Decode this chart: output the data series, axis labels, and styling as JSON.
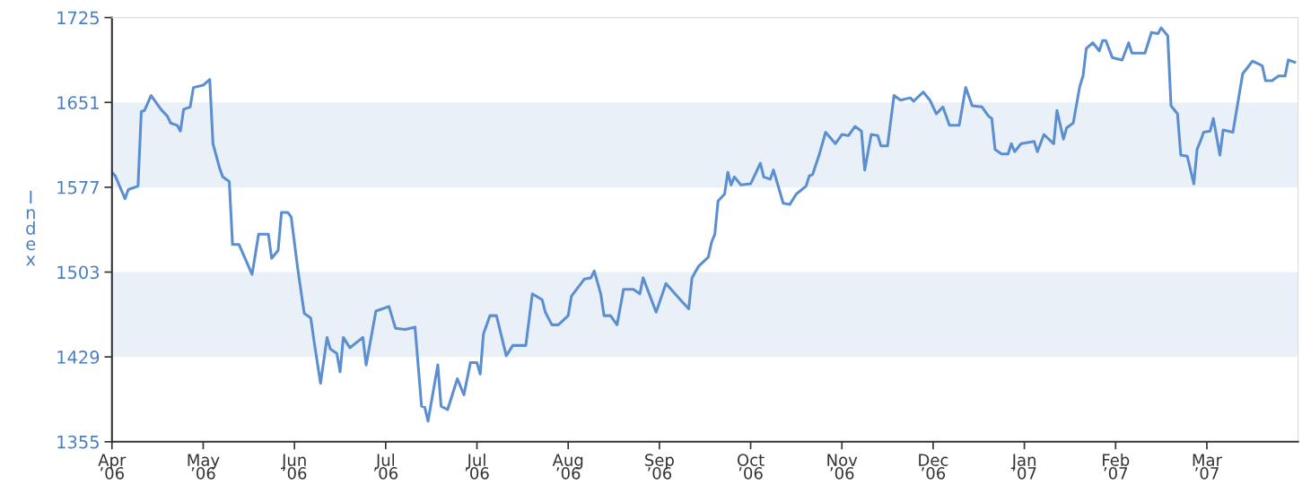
{
  "chart_data": {
    "type": "line",
    "ylabel": "Index",
    "xlim": [
      "2006-04-08",
      "2007-04-07"
    ],
    "ylim": [
      1355,
      1725
    ],
    "xticks": [
      {
        "value": "2006-04-08",
        "label": "Apr\n’06"
      },
      {
        "value": "2006-05-06",
        "label": "May\n’06"
      },
      {
        "value": "2006-06-03",
        "label": "Jun\n’06"
      },
      {
        "value": "2006-07-01",
        "label": "Jul\n’06"
      },
      {
        "value": "2006-07-29",
        "label": "Jul\n’06"
      },
      {
        "value": "2006-08-26",
        "label": "Aug\n’06"
      },
      {
        "value": "2006-09-23",
        "label": "Sep\n’06"
      },
      {
        "value": "2006-10-21",
        "label": "Oct\n’06"
      },
      {
        "value": "2006-11-18",
        "label": "Nov\n’06"
      },
      {
        "value": "2006-12-16",
        "label": "Dec\n’06"
      },
      {
        "value": "2007-01-13",
        "label": "Jan\n’07"
      },
      {
        "value": "2007-02-10",
        "label": "Feb\n’07"
      },
      {
        "value": "2007-03-10",
        "label": "Mar\n’07"
      }
    ],
    "yticks": [
      1355,
      1429,
      1503,
      1577,
      1651,
      1725
    ],
    "grid": false,
    "legend": false,
    "marker": "none",
    "line_style": "solid",
    "bands": [
      {
        "axis": "y",
        "from": 1429,
        "to": 1503,
        "color": "#eaf0f8"
      },
      {
        "axis": "y",
        "from": 1577,
        "to": 1651,
        "color": "#eaf0f8"
      }
    ],
    "series": [
      {
        "color": "#5b8fd0",
        "x": [
          "2006-04-08",
          "2006-04-09",
          "2006-04-12",
          "2006-04-13",
          "2006-04-16",
          "2006-04-17",
          "2006-04-18",
          "2006-04-20",
          "2006-04-21",
          "2006-04-23",
          "2006-04-25",
          "2006-04-26",
          "2006-04-28",
          "2006-04-29",
          "2006-04-30",
          "2006-05-02",
          "2006-05-03",
          "2006-05-06",
          "2006-05-08",
          "2006-05-09",
          "2006-05-11",
          "2006-05-12",
          "2006-05-14",
          "2006-05-15",
          "2006-05-17",
          "2006-05-21",
          "2006-05-23",
          "2006-05-26",
          "2006-05-27",
          "2006-05-29",
          "2006-05-30",
          "2006-06-01",
          "2006-06-02",
          "2006-06-04",
          "2006-06-06",
          "2006-06-08",
          "2006-06-09",
          "2006-06-11",
          "2006-06-13",
          "2006-06-14",
          "2006-06-16",
          "2006-06-17",
          "2006-06-18",
          "2006-06-20",
          "2006-06-24",
          "2006-06-25",
          "2006-06-28",
          "2006-06-30",
          "2006-07-02",
          "2006-07-04",
          "2006-07-07",
          "2006-07-10",
          "2006-07-12",
          "2006-07-13",
          "2006-07-14",
          "2006-07-17",
          "2006-07-18",
          "2006-07-20",
          "2006-07-23",
          "2006-07-25",
          "2006-07-27",
          "2006-07-29",
          "2006-07-30",
          "2006-07-31",
          "2006-08-02",
          "2006-08-04",
          "2006-08-07",
          "2006-08-09",
          "2006-08-13",
          "2006-08-15",
          "2006-08-18",
          "2006-08-19",
          "2006-08-21",
          "2006-08-23",
          "2006-08-26",
          "2006-08-27",
          "2006-08-31",
          "2006-09-02",
          "2006-09-03",
          "2006-09-05",
          "2006-09-06",
          "2006-09-08",
          "2006-09-10",
          "2006-09-12",
          "2006-09-15",
          "2006-09-17",
          "2006-09-18",
          "2006-09-22",
          "2006-09-25",
          "2006-09-30",
          "2006-10-02",
          "2006-10-03",
          "2006-10-05",
          "2006-10-08",
          "2006-10-09",
          "2006-10-10",
          "2006-10-11",
          "2006-10-13",
          "2006-10-14",
          "2006-10-15",
          "2006-10-16",
          "2006-10-18",
          "2006-10-21",
          "2006-10-24",
          "2006-10-25",
          "2006-10-27",
          "2006-10-28",
          "2006-10-31",
          "2006-11-02",
          "2006-11-04",
          "2006-11-07",
          "2006-11-08",
          "2006-11-09",
          "2006-11-11",
          "2006-11-13",
          "2006-11-16",
          "2006-11-18",
          "2006-11-20",
          "2006-11-22",
          "2006-11-24",
          "2006-11-25",
          "2006-11-27",
          "2006-11-29",
          "2006-11-30",
          "2006-12-02",
          "2006-12-04",
          "2006-12-06",
          "2006-12-09",
          "2006-12-10",
          "2006-12-13",
          "2006-12-15",
          "2006-12-17",
          "2006-12-19",
          "2006-12-21",
          "2006-12-24",
          "2006-12-26",
          "2006-12-28",
          "2006-12-31",
          "2007-01-02",
          "2007-01-03",
          "2007-01-04",
          "2007-01-06",
          "2007-01-08",
          "2007-01-09",
          "2007-01-10",
          "2007-01-12",
          "2007-01-16",
          "2007-01-17",
          "2007-01-19",
          "2007-01-22",
          "2007-01-23",
          "2007-01-25",
          "2007-01-26",
          "2007-01-28",
          "2007-01-30",
          "2007-01-31",
          "2007-02-01",
          "2007-02-03",
          "2007-02-05",
          "2007-02-06",
          "2007-02-07",
          "2007-02-09",
          "2007-02-12",
          "2007-02-14",
          "2007-02-15",
          "2007-02-19",
          "2007-02-21",
          "2007-02-23",
          "2007-02-24",
          "2007-02-26",
          "2007-02-27",
          "2007-03-01",
          "2007-03-02",
          "2007-03-04",
          "2007-03-06",
          "2007-03-07",
          "2007-03-08",
          "2007-03-09",
          "2007-03-11",
          "2007-03-12",
          "2007-03-14",
          "2007-03-15",
          "2007-03-18",
          "2007-03-21",
          "2007-03-24",
          "2007-03-27",
          "2007-03-28",
          "2007-03-30",
          "2007-04-01",
          "2007-04-03",
          "2007-04-04",
          "2007-04-06"
        ],
        "values": [
          1590,
          1587,
          1567,
          1575,
          1578,
          1643,
          1644,
          1657,
          1653,
          1645,
          1639,
          1633,
          1631,
          1626,
          1645,
          1647,
          1664,
          1666,
          1671,
          1615,
          1594,
          1586,
          1582,
          1527,
          1527,
          1501,
          1536,
          1536,
          1515,
          1522,
          1555,
          1555,
          1551,
          1506,
          1467,
          1463,
          1443,
          1406,
          1446,
          1436,
          1432,
          1416,
          1446,
          1437,
          1446,
          1422,
          1469,
          1471,
          1473,
          1454,
          1453,
          1455,
          1386,
          1385,
          1373,
          1422,
          1386,
          1383,
          1410,
          1396,
          1424,
          1424,
          1414,
          1449,
          1465,
          1465,
          1430,
          1439,
          1439,
          1484,
          1479,
          1468,
          1457,
          1457,
          1465,
          1482,
          1497,
          1498,
          1504,
          1484,
          1465,
          1465,
          1457,
          1488,
          1488,
          1484,
          1498,
          1468,
          1493,
          1477,
          1471,
          1498,
          1508,
          1516,
          1529,
          1536,
          1565,
          1571,
          1590,
          1579,
          1586,
          1579,
          1580,
          1598,
          1586,
          1584,
          1592,
          1563,
          1562,
          1571,
          1578,
          1587,
          1588,
          1605,
          1625,
          1615,
          1623,
          1622,
          1630,
          1626,
          1592,
          1623,
          1622,
          1613,
          1613,
          1657,
          1653,
          1655,
          1652,
          1660,
          1653,
          1641,
          1647,
          1631,
          1631,
          1664,
          1648,
          1647,
          1639,
          1637,
          1610,
          1606,
          1606,
          1615,
          1608,
          1615,
          1617,
          1608,
          1623,
          1615,
          1644,
          1619,
          1629,
          1633,
          1665,
          1674,
          1698,
          1703,
          1696,
          1705,
          1705,
          1690,
          1688,
          1703,
          1694,
          1694,
          1712,
          1711,
          1716,
          1709,
          1648,
          1641,
          1605,
          1604,
          1580,
          1610,
          1617,
          1625,
          1626,
          1637,
          1605,
          1627,
          1625,
          1676,
          1687,
          1683,
          1670,
          1670,
          1674,
          1674,
          1688,
          1686
        ]
      }
    ]
  }
}
